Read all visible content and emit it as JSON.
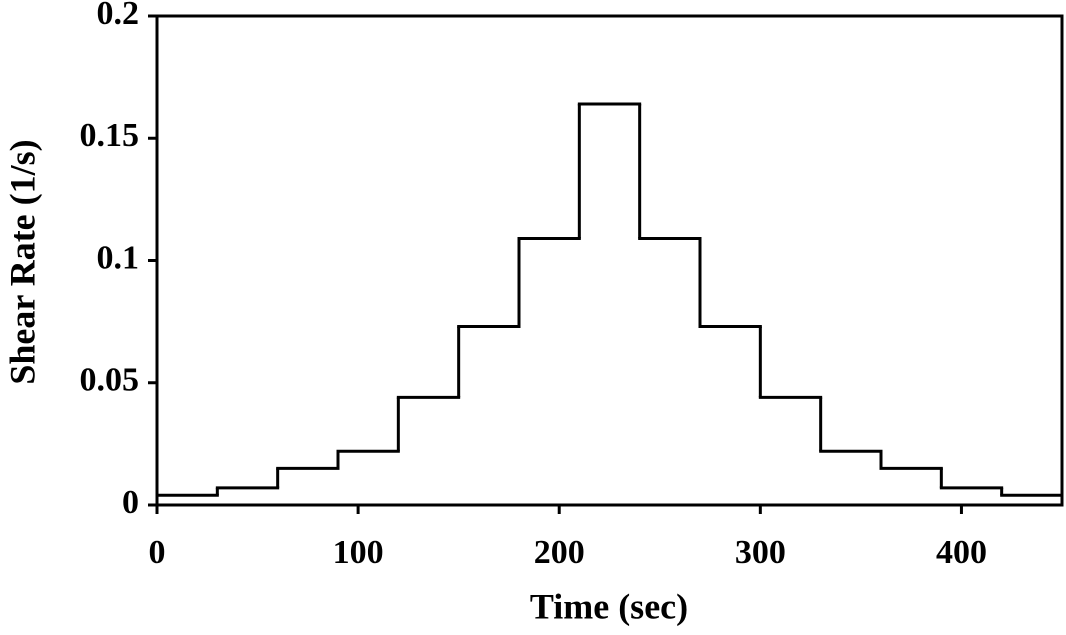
{
  "chart_data": {
    "type": "step",
    "x_label": "Time (sec)",
    "y_label": "Shear Rate (1/s)",
    "x": [
      0,
      30,
      60,
      90,
      120,
      150,
      180,
      210,
      240,
      270,
      300,
      330,
      360,
      390,
      420
    ],
    "values": [
      0.004,
      0.007,
      0.015,
      0.022,
      0.044,
      0.073,
      0.109,
      0.164,
      0.109,
      0.073,
      0.044,
      0.022,
      0.015,
      0.007,
      0.004
    ],
    "color": "#000000",
    "xlim": [
      0,
      450
    ],
    "xticks": [
      0,
      100,
      200,
      300,
      400
    ],
    "ylim": [
      0,
      0.2
    ],
    "yticks": [
      0,
      0.05,
      0.1,
      0.15,
      0.2
    ]
  }
}
